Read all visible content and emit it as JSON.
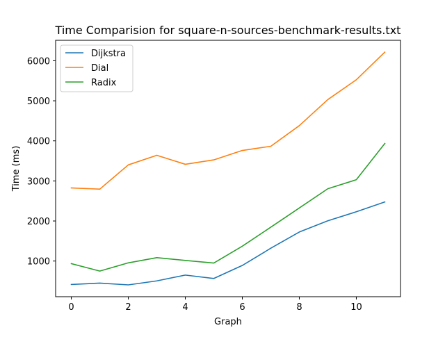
{
  "chart_data": {
    "type": "line",
    "title": "Time Comparision for square-n-sources-benchmark-results.txt",
    "xlabel": "Graph",
    "ylabel": "Time (ms)",
    "xlim": [
      -0.55,
      11.55
    ],
    "ylim": [
      110,
      6510
    ],
    "xticks": [
      0,
      2,
      4,
      6,
      8,
      10
    ],
    "yticks": [
      1000,
      2000,
      3000,
      4000,
      5000,
      6000
    ],
    "grid": false,
    "legend_position": "upper-left",
    "x": [
      0,
      1,
      2,
      3,
      4,
      5,
      6,
      7,
      8,
      9,
      10,
      11
    ],
    "series": [
      {
        "name": "Dijkstra",
        "color": "#1f77b4",
        "values": [
          415,
          450,
          405,
          505,
          650,
          565,
          890,
          1320,
          1725,
          2005,
          2230,
          2475
        ]
      },
      {
        "name": "Dial",
        "color": "#ff7f0e",
        "values": [
          2825,
          2795,
          3400,
          3640,
          3415,
          3525,
          3760,
          3865,
          4380,
          5030,
          5525,
          6215
        ]
      },
      {
        "name": "Radix",
        "color": "#2ca02c",
        "values": [
          935,
          750,
          955,
          1085,
          1015,
          950,
          1370,
          1845,
          2325,
          2805,
          3030,
          3935
        ]
      }
    ]
  }
}
